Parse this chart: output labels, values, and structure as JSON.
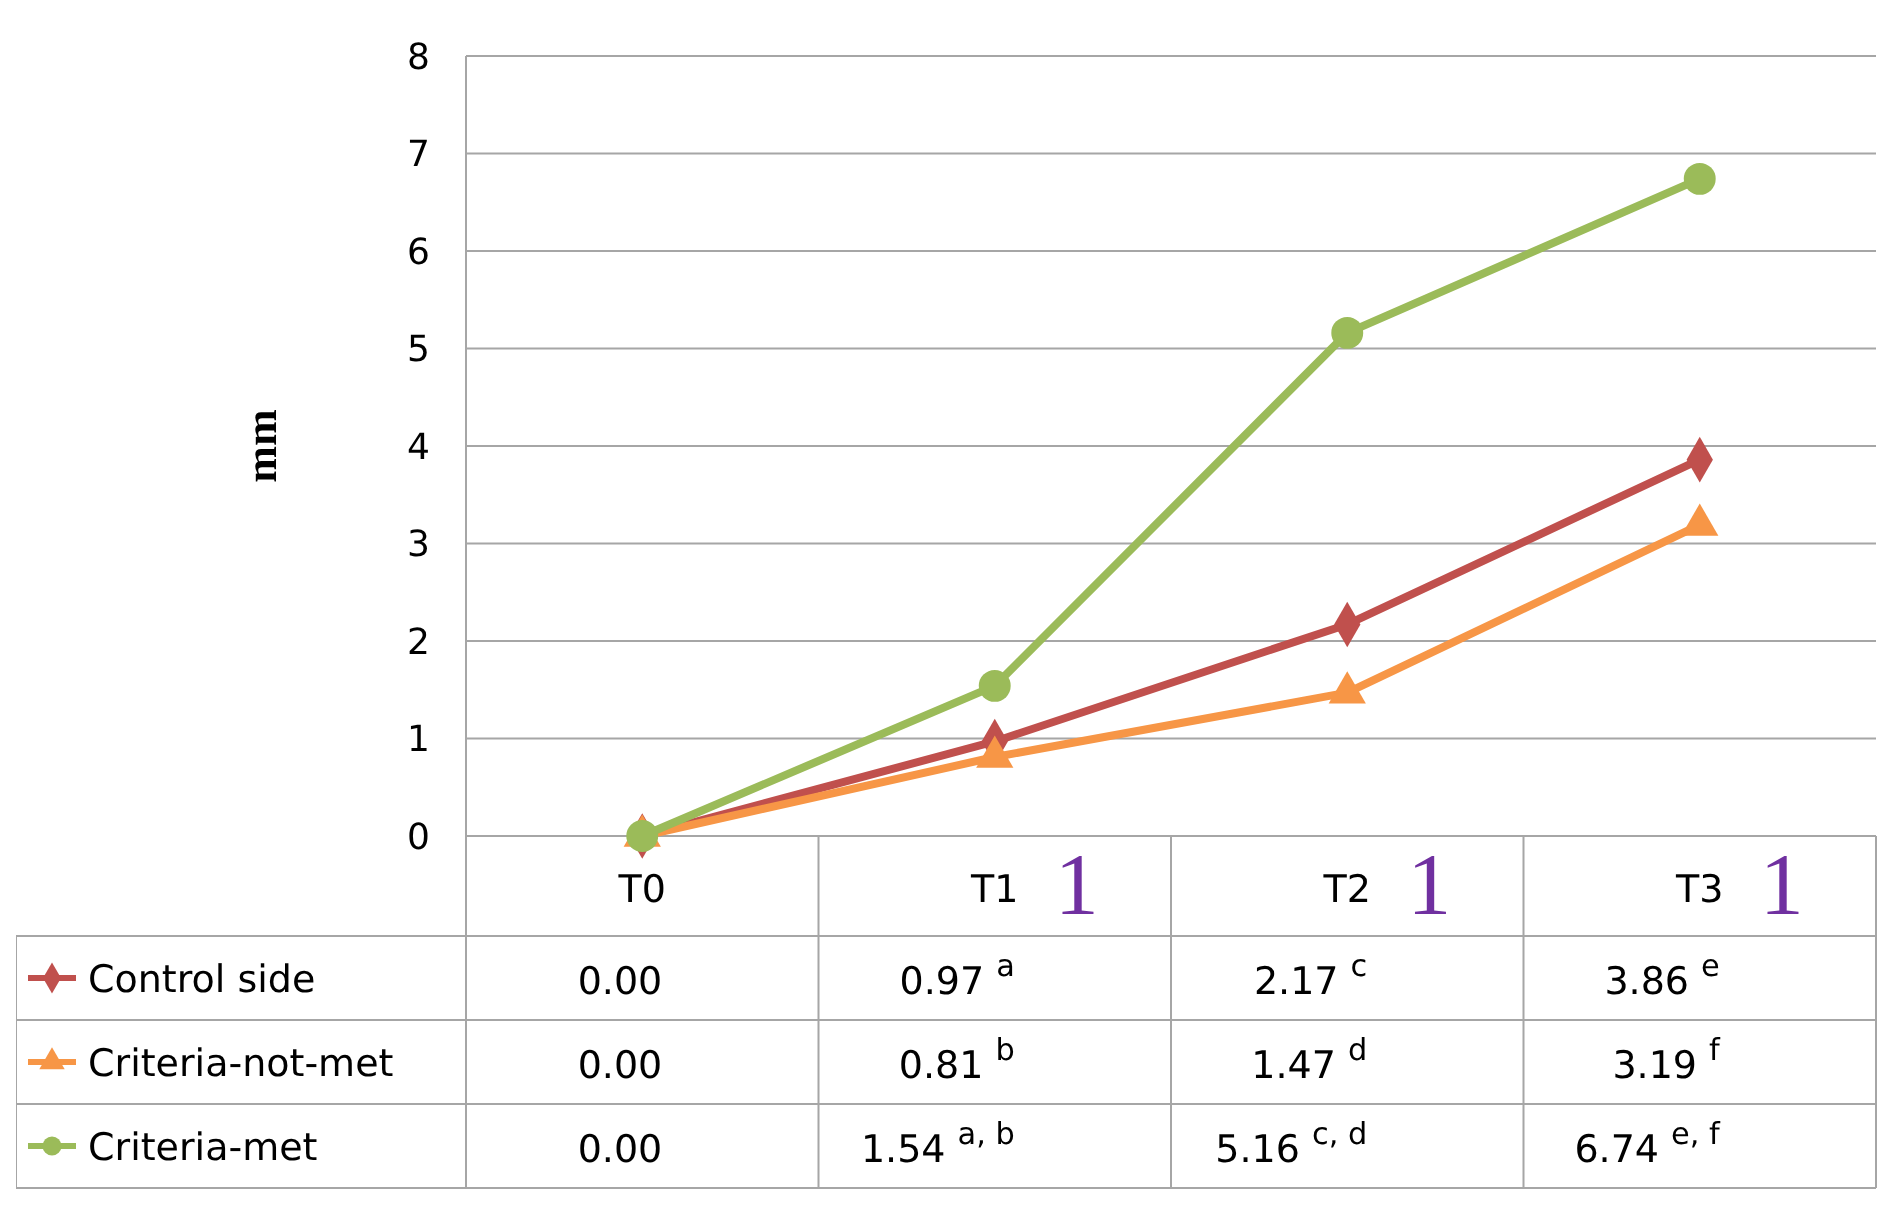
{
  "chart_data": {
    "type": "line",
    "ylabel": "mm",
    "categories": [
      "T0",
      "T1",
      "T2",
      "T3"
    ],
    "ylim": [
      0,
      8
    ],
    "yticks": [
      0,
      1,
      2,
      3,
      4,
      5,
      6,
      7,
      8
    ],
    "grid": "y",
    "series": [
      {
        "name": "Control side",
        "color": "#c0504d",
        "marker": "diamond",
        "values": [
          0,
          0.97,
          2.17,
          3.86
        ],
        "value_labels": [
          "0.00",
          "0.97$^{a}$",
          "2.17$^{c}$",
          "3.86$^{e}$"
        ]
      },
      {
        "name": "Criteria-not-met",
        "color": "#f79646",
        "marker": "triangle",
        "values": [
          0,
          0.81,
          1.47,
          3.19
        ],
        "value_labels": [
          "0.00",
          "0.81$^{b}$",
          "1.47$^{d}$",
          "3.19$^{f}$"
        ]
      },
      {
        "name": "Criteria-met",
        "color": "#9bbb59",
        "marker": "circle",
        "values": [
          0,
          1.54,
          5.16,
          6.74
        ],
        "value_labels": [
          "0.00",
          "1.54$^{a, b}$",
          "5.16$^{c, d}$",
          "6.74$^{e, f}$"
        ]
      }
    ],
    "legend": "bottom",
    "annotations": [
      "1",
      "1",
      "1"
    ]
  }
}
